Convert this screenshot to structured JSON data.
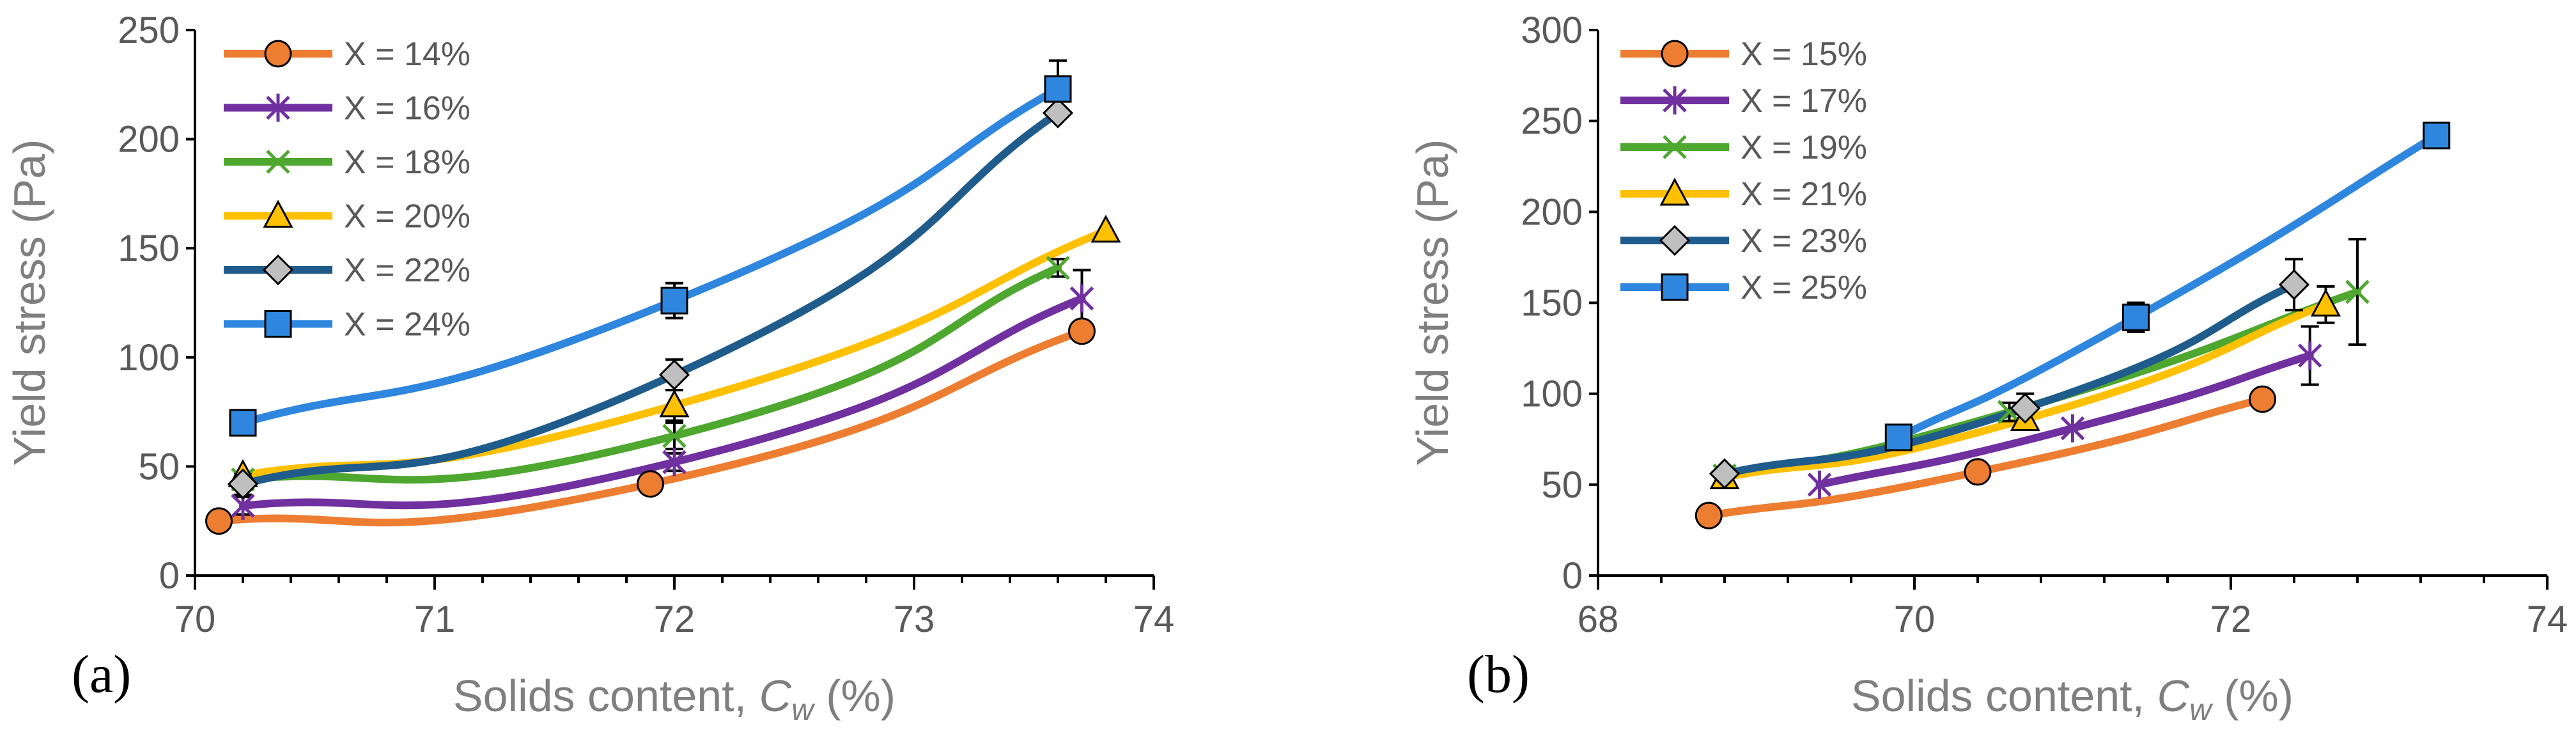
{
  "chart_data": [
    {
      "type": "line",
      "panel_label": "(a)",
      "xlabel_prefix": "Solids content, ",
      "xlabel_var": "C",
      "xlabel_sub": "w",
      "xlabel_suffix": " (%)",
      "ylabel": "Yield stress (Pa)",
      "xlim": [
        70,
        74
      ],
      "ylim": [
        0,
        250
      ],
      "xticks": [
        "70",
        "71",
        "72",
        "73",
        "74"
      ],
      "yticks": [
        "0",
        "50",
        "100",
        "150",
        "200",
        "250"
      ],
      "legend_position": "top-left",
      "series": [
        {
          "name": "X = 14%",
          "color": "#ED7D31",
          "marker": "circle",
          "x": [
            70.1,
            71.9,
            73.7
          ],
          "y": [
            25,
            42,
            112
          ],
          "err": [
            0,
            0,
            0
          ]
        },
        {
          "name": "X = 16%",
          "color": "#7030A0",
          "marker": "star",
          "x": [
            70.2,
            72.0,
            73.7
          ],
          "y": [
            32,
            52,
            127
          ],
          "err": [
            4,
            4,
            13
          ]
        },
        {
          "name": "X = 18%",
          "color": "#4EA72E",
          "marker": "x",
          "x": [
            70.2,
            72.0,
            73.6
          ],
          "y": [
            44,
            64,
            141
          ],
          "err": [
            0,
            6,
            4
          ]
        },
        {
          "name": "X = 20%",
          "color": "#FFC000",
          "marker": "triangle",
          "x": [
            70.2,
            72.0,
            73.8
          ],
          "y": [
            46,
            78,
            158
          ],
          "err": [
            0,
            7,
            0
          ]
        },
        {
          "name": "X = 22%",
          "color": "#1F5C8B",
          "marker": "diamond",
          "x": [
            70.2,
            72.0,
            73.6
          ],
          "y": [
            42,
            92,
            212
          ],
          "err": [
            5,
            7,
            0
          ]
        },
        {
          "name": "X = 24%",
          "color": "#2E86DE",
          "marker": "square",
          "x": [
            70.2,
            72.0,
            73.6
          ],
          "y": [
            70,
            126,
            223
          ],
          "err": [
            0,
            8,
            13
          ]
        }
      ]
    },
    {
      "type": "line",
      "panel_label": "(b)",
      "xlabel_prefix": "Solids content, ",
      "xlabel_var": "C",
      "xlabel_sub": "w",
      "xlabel_suffix": " (%)",
      "ylabel": "Yield stress (Pa)",
      "xlim": [
        68,
        74
      ],
      "ylim": [
        0,
        300
      ],
      "xticks": [
        "68",
        "70",
        "72",
        "74"
      ],
      "yticks": [
        "0",
        "50",
        "100",
        "150",
        "200",
        "250",
        "300"
      ],
      "legend_position": "top-left",
      "series": [
        {
          "name": "X = 15%",
          "color": "#ED7D31",
          "marker": "circle",
          "x": [
            68.7,
            70.4,
            72.2
          ],
          "y": [
            33,
            57,
            97
          ],
          "err": [
            0,
            0,
            0
          ]
        },
        {
          "name": "X = 17%",
          "color": "#7030A0",
          "marker": "star",
          "x": [
            69.4,
            71.0,
            72.5
          ],
          "y": [
            50,
            81,
            121
          ],
          "err": [
            0,
            0,
            16
          ]
        },
        {
          "name": "X = 19%",
          "color": "#4EA72E",
          "marker": "x",
          "x": [
            68.8,
            70.6,
            72.8
          ],
          "y": [
            55,
            90,
            156
          ],
          "err": [
            0,
            5,
            29
          ]
        },
        {
          "name": "X = 21%",
          "color": "#FFC000",
          "marker": "triangle",
          "x": [
            68.8,
            70.7,
            72.6
          ],
          "y": [
            54,
            86,
            149
          ],
          "err": [
            0,
            3,
            10
          ]
        },
        {
          "name": "X = 23%",
          "color": "#1F5C8B",
          "marker": "diamond",
          "x": [
            68.8,
            70.7,
            72.4
          ],
          "y": [
            56,
            92,
            160
          ],
          "err": [
            0,
            8,
            14
          ]
        },
        {
          "name": "X = 25%",
          "color": "#2E86DE",
          "marker": "square",
          "x": [
            69.9,
            71.4,
            73.3
          ],
          "y": [
            76,
            142,
            242
          ],
          "err": [
            0,
            8,
            0
          ]
        }
      ]
    }
  ]
}
